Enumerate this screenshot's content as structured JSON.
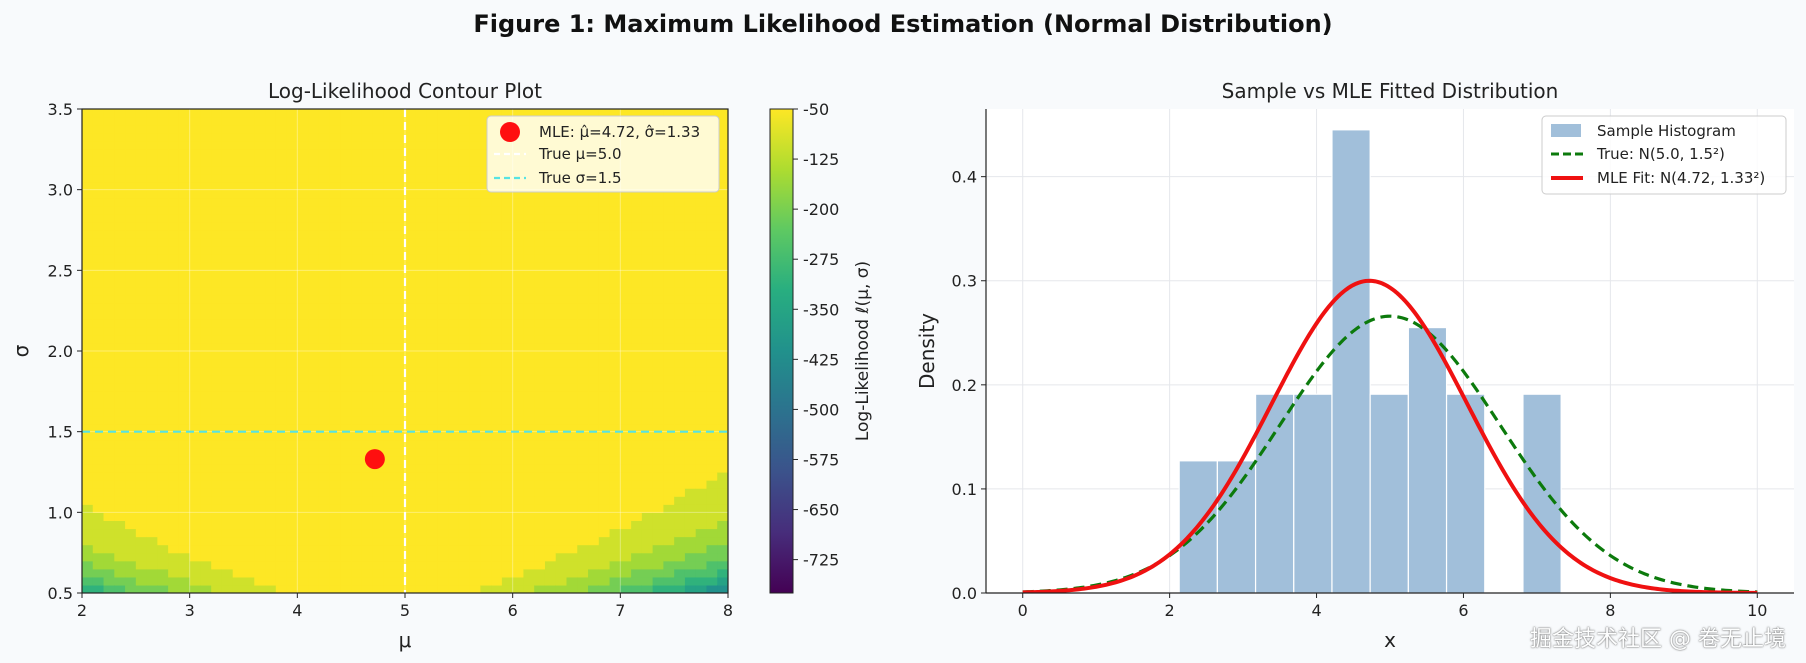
{
  "figure_title": "Figure 1: Maximum Likelihood Estimation (Normal Distribution)",
  "watermark": "掘金技术社区 @ 卷无止境",
  "colors": {
    "mle_point": "#ff0f0f",
    "true_sigma_line": "#56e3e3",
    "true_mu_line": "#ffffff",
    "hist_fill": "#a1bfda",
    "true_curve": "#0c7a0c",
    "mle_curve": "#ef1111"
  },
  "chart_data": [
    {
      "type": "heatmap",
      "title": "Log-Likelihood Contour Plot",
      "xlabel": "μ",
      "ylabel": "σ",
      "xlim": [
        2,
        8
      ],
      "ylim": [
        0.5,
        3.5
      ],
      "x_ticks": [
        "2",
        "3",
        "4",
        "5",
        "6",
        "7",
        "8"
      ],
      "y_ticks": [
        "0.5",
        "1.0",
        "1.5",
        "2.0",
        "2.5",
        "3.0",
        "3.5"
      ],
      "colorbar": {
        "label": "Log-Likelihood ℓ(μ, σ)",
        "range": [
          -775,
          -50
        ],
        "ticks": [
          "-50",
          "-125",
          "-200",
          "-275",
          "-350",
          "-425",
          "-500",
          "-575",
          "-650",
          "-725"
        ]
      },
      "mle_point": {
        "mu": 4.72,
        "sigma": 1.33
      },
      "true_mu": 5.0,
      "true_sigma": 1.5,
      "legend": {
        "placement": "top-right",
        "entries": [
          "MLE: μ̂=4.72, σ̂=1.33",
          "True μ=5.0",
          "True σ=1.5"
        ]
      },
      "grid": true
    },
    {
      "type": "bar",
      "title": "Sample vs MLE Fitted Distribution",
      "xlabel": "x",
      "ylabel": "Density",
      "xlim": [
        -0.5,
        10.5
      ],
      "ylim": [
        0,
        0.465
      ],
      "x_ticks": [
        "0",
        "2",
        "4",
        "6",
        "8",
        "10"
      ],
      "y_ticks": [
        "0.0",
        "0.1",
        "0.2",
        "0.3",
        "0.4"
      ],
      "histogram": {
        "bins": [
          {
            "x0": 2.13,
            "x1": 2.65,
            "density": 0.127
          },
          {
            "x0": 2.65,
            "x1": 3.17,
            "density": 0.127
          },
          {
            "x0": 3.17,
            "x1": 3.69,
            "density": 0.191
          },
          {
            "x0": 3.69,
            "x1": 4.21,
            "density": 0.191
          },
          {
            "x0": 4.21,
            "x1": 4.73,
            "density": 0.445
          },
          {
            "x0": 4.73,
            "x1": 5.25,
            "density": 0.191
          },
          {
            "x0": 5.25,
            "x1": 5.77,
            "density": 0.255
          },
          {
            "x0": 5.77,
            "x1": 6.29,
            "density": 0.191
          },
          {
            "x0": 6.29,
            "x1": 6.81,
            "density": 0.0
          },
          {
            "x0": 6.81,
            "x1": 7.33,
            "density": 0.191
          }
        ]
      },
      "series": [
        {
          "name": "True: N(5.0, 1.5²)",
          "kind": "normal-pdf",
          "mu": 5.0,
          "sigma": 1.5,
          "style": "dashed"
        },
        {
          "name": "MLE Fit: N(4.72, 1.33²)",
          "kind": "normal-pdf",
          "mu": 4.72,
          "sigma": 1.33,
          "style": "solid"
        }
      ],
      "curve_domain": [
        0,
        10
      ],
      "legend": {
        "placement": "top-right",
        "entries": [
          "Sample Histogram",
          "True: N(5.0, 1.5²)",
          "MLE Fit: N(4.72, 1.33²)"
        ]
      },
      "grid": true
    }
  ]
}
